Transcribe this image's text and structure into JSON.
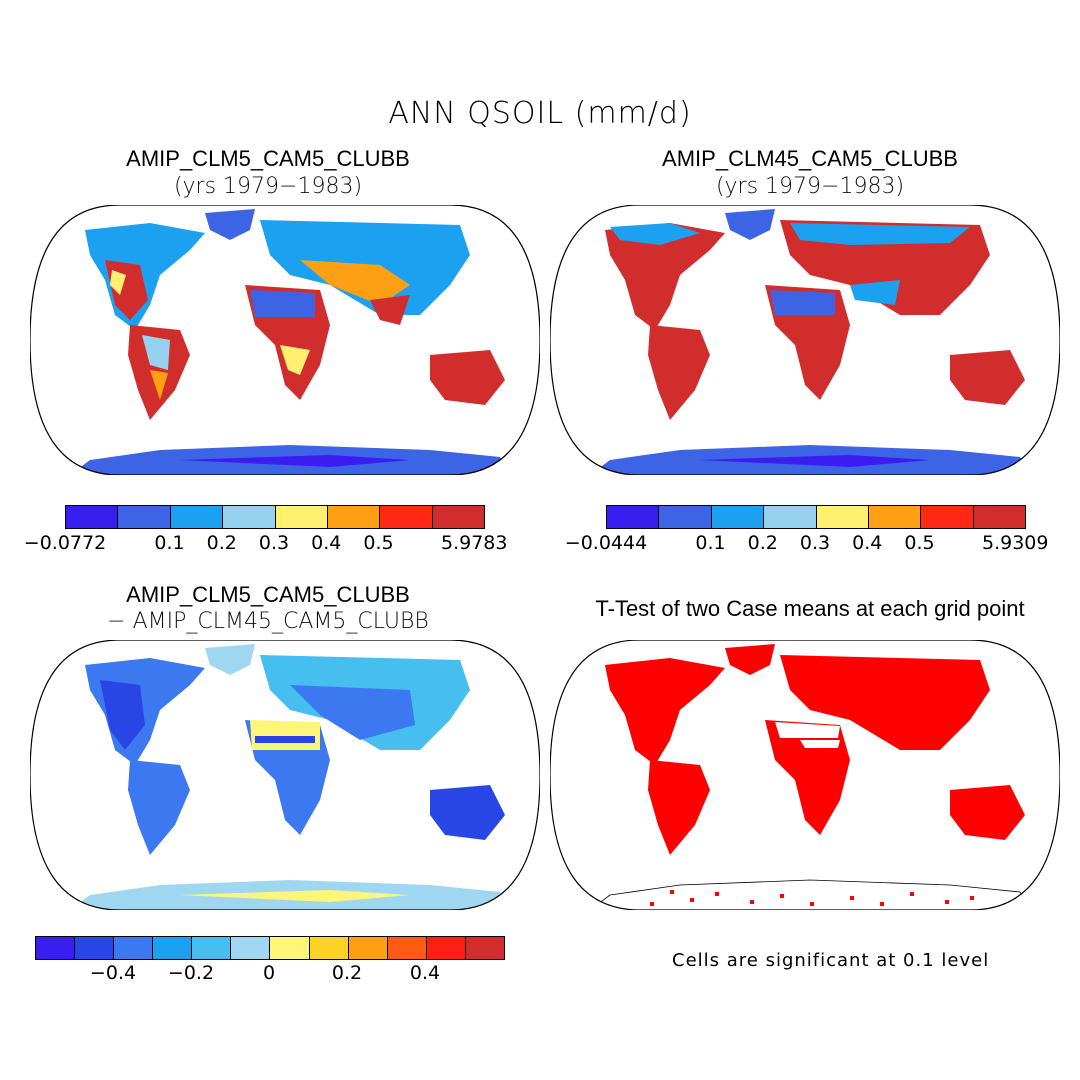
{
  "figure": {
    "title": "ANN QSOIL (mm/d)"
  },
  "panels": [
    {
      "title": "AMIP_CLM5_CAM5_CLUBB",
      "subtitle": "(yrs 1979−1983)",
      "colorbar": {
        "colors": [
          "#3a1ef0",
          "#3c64e4",
          "#1ca0f0",
          "#96d2f0",
          "#fff070",
          "#ffa014",
          "#ff2814",
          "#d22d2d"
        ],
        "labels": [
          "−0.0772",
          "0.1",
          "0.2",
          "0.3",
          "0.4",
          "0.5",
          "5.9783"
        ]
      }
    },
    {
      "title": "AMIP_CLM45_CAM5_CLUBB",
      "subtitle": "(yrs 1979−1983)",
      "colorbar": {
        "colors": [
          "#3a1ef0",
          "#3c64e4",
          "#1ca0f0",
          "#96d2f0",
          "#fff070",
          "#ffa014",
          "#ff2814",
          "#d22d2d"
        ],
        "labels": [
          "−0.0444",
          "0.1",
          "0.2",
          "0.3",
          "0.4",
          "0.5",
          "5.9309"
        ]
      }
    },
    {
      "title": "AMIP_CLM5_CAM5_CLUBB",
      "subtitle": "− AMIP_CLM45_CAM5_CLUBB",
      "colorbar": {
        "colors": [
          "#3a1ef0",
          "#2846e6",
          "#3c78f0",
          "#1ca0f0",
          "#46bef0",
          "#a0d7f0",
          "#fff578",
          "#ffd228",
          "#ffa014",
          "#ff5a14",
          "#ff1e14",
          "#d22d2d"
        ],
        "labels": [
          "−0.4",
          "−0.2",
          "0",
          "0.2",
          "0.4"
        ]
      }
    },
    {
      "title": "T-Test of two Case means at each grid point",
      "note": "Cells are significant at 0.1 level",
      "color": "#ff0000"
    }
  ]
}
